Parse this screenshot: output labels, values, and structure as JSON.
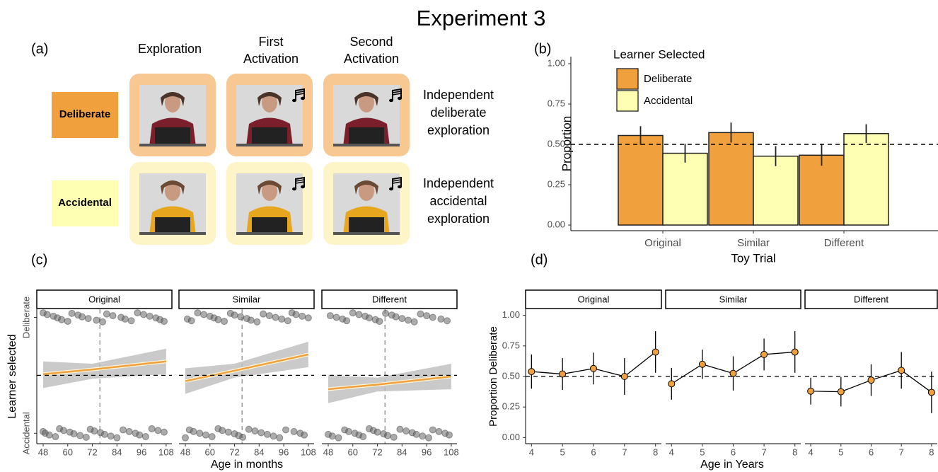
{
  "title": "Experiment 3",
  "panel_a": {
    "panel": "(a)",
    "columns": [
      [
        "Exploration"
      ],
      [
        "First",
        "Activation"
      ],
      [
        "Second",
        "Activation"
      ]
    ],
    "rows": [
      {
        "label": "Deliberate",
        "description": [
          "Independent",
          "deliberate",
          "exploration"
        ]
      },
      {
        "label": "Accidental",
        "description": [
          "Independent",
          "accidental",
          "exploration"
        ]
      }
    ]
  },
  "chart_data": [
    {
      "type": "bar",
      "panel": "(b)",
      "legend_title": "Learner Selected",
      "legend": "top-left",
      "categories": [
        "Original",
        "Similar",
        "Different"
      ],
      "series": [
        {
          "name": "Deliberate",
          "color": "#f0a03c",
          "values": [
            0.555,
            0.573,
            0.433
          ],
          "errors": [
            0.058,
            0.062,
            0.065
          ]
        },
        {
          "name": "Accidental",
          "color": "#ffffb3",
          "values": [
            0.445,
            0.427,
            0.567
          ],
          "errors": [
            0.058,
            0.062,
            0.058
          ]
        }
      ],
      "xlabel": "Toy Trial",
      "ylabel": "Proportion",
      "ylim": [
        -0.035,
        1.044
      ],
      "yticks": [
        {
          "value": 0,
          "label": "0.00"
        },
        {
          "value": 0.25,
          "label": "0.25"
        },
        {
          "value": 0.5,
          "label": "0.50"
        },
        {
          "value": 0.75,
          "label": "0.75"
        },
        {
          "value": 1,
          "label": "1.00"
        }
      ],
      "hline": 0.5
    },
    {
      "type": "regression",
      "panel": "(c)",
      "xlabel": "Age in months",
      "ylabel": "Learner selected",
      "xlim": [
        44.9,
        110.8
      ],
      "xticks": [
        48,
        60,
        72,
        84,
        96,
        108
      ],
      "ylim": [
        -0.09,
        1.07
      ],
      "yticks": [
        {
          "value": 1,
          "label": "Deliberate"
        },
        {
          "value": 0,
          "label": "Accidental"
        }
      ],
      "hline": 0.5,
      "vline": 75.7,
      "line_color": "#f0a03c",
      "point_color": "#666666",
      "facets": [
        {
          "name": "Original",
          "deliberate_ages": [
            48,
            50,
            53,
            55,
            57,
            60,
            62,
            65,
            67,
            70,
            74,
            77,
            79,
            82,
            86,
            88,
            91,
            94,
            97,
            100,
            103,
            105,
            107
          ],
          "accidental_ages": [
            48,
            49,
            51,
            54,
            56,
            58,
            61,
            63,
            66,
            69,
            71,
            73,
            76,
            78,
            81,
            84,
            87,
            90,
            93,
            95,
            98,
            101,
            104,
            107
          ],
          "fit": {
            "x": [
              48,
              72,
              108
            ],
            "y": [
              0.51,
              0.55,
              0.62
            ],
            "lower": [
              0.39,
              0.47,
              0.51
            ],
            "upper": [
              0.62,
              0.6,
              0.73
            ]
          }
        },
        {
          "name": "Similar",
          "deliberate_ages": [
            49,
            51,
            54,
            57,
            60,
            62,
            64,
            67,
            70,
            72,
            75,
            78,
            80,
            83,
            86,
            89,
            92,
            95,
            98,
            100,
            102,
            105,
            108
          ],
          "accidental_ages": [
            48,
            50,
            52,
            55,
            58,
            61,
            64,
            66,
            69,
            72,
            74,
            76,
            79,
            82,
            85,
            88,
            91,
            94,
            97,
            101,
            104,
            106
          ],
          "fit": {
            "x": [
              48,
              72,
              108
            ],
            "y": [
              0.45,
              0.54,
              0.68
            ],
            "lower": [
              0.34,
              0.48,
              0.57
            ],
            "upper": [
              0.56,
              0.6,
              0.79
            ]
          }
        },
        {
          "name": "Different",
          "deliberate_ages": [
            49,
            52,
            55,
            57,
            60,
            63,
            66,
            68,
            71,
            73,
            76,
            79,
            81,
            84,
            87,
            90,
            93,
            96,
            99,
            103,
            106
          ],
          "accidental_ages": [
            48,
            50,
            53,
            56,
            58,
            61,
            63,
            65,
            68,
            70,
            72,
            75,
            77,
            80,
            83,
            86,
            89,
            91,
            94,
            97,
            99,
            102,
            105,
            107
          ],
          "fit": {
            "x": [
              48,
              72,
              108
            ],
            "y": [
              0.38,
              0.42,
              0.49
            ],
            "lower": [
              0.26,
              0.36,
              0.38
            ],
            "upper": [
              0.5,
              0.48,
              0.6
            ]
          }
        }
      ]
    },
    {
      "type": "line",
      "panel": "(d)",
      "xlabel": "Age in Years",
      "ylabel": "Proportion Deliberate",
      "xlim": [
        3.81,
        8.19
      ],
      "xticks": [
        4,
        5,
        6,
        7,
        8
      ],
      "ylim": [
        -0.05,
        1.05
      ],
      "yticks": [
        {
          "value": 0,
          "label": "0.00"
        },
        {
          "value": 0.25,
          "label": "0.25"
        },
        {
          "value": 0.5,
          "label": "0.50"
        },
        {
          "value": 0.75,
          "label": "0.75"
        },
        {
          "value": 1,
          "label": "1.00"
        }
      ],
      "hline": 0.5,
      "color": "#f0a03c",
      "x": [
        4,
        5,
        6,
        7,
        8
      ],
      "facets": [
        {
          "name": "Original",
          "values": [
            0.54,
            0.52,
            0.565,
            0.5,
            0.7
          ],
          "errors": [
            0.14,
            0.13,
            0.13,
            0.15,
            0.17
          ]
        },
        {
          "name": "Similar",
          "values": [
            0.44,
            0.6,
            0.525,
            0.68,
            0.7
          ],
          "errors": [
            0.13,
            0.12,
            0.14,
            0.13,
            0.17
          ]
        },
        {
          "name": "Different",
          "values": [
            0.38,
            0.375,
            0.47,
            0.55,
            0.37
          ],
          "errors": [
            0.11,
            0.12,
            0.13,
            0.15,
            0.17
          ]
        }
      ]
    }
  ]
}
